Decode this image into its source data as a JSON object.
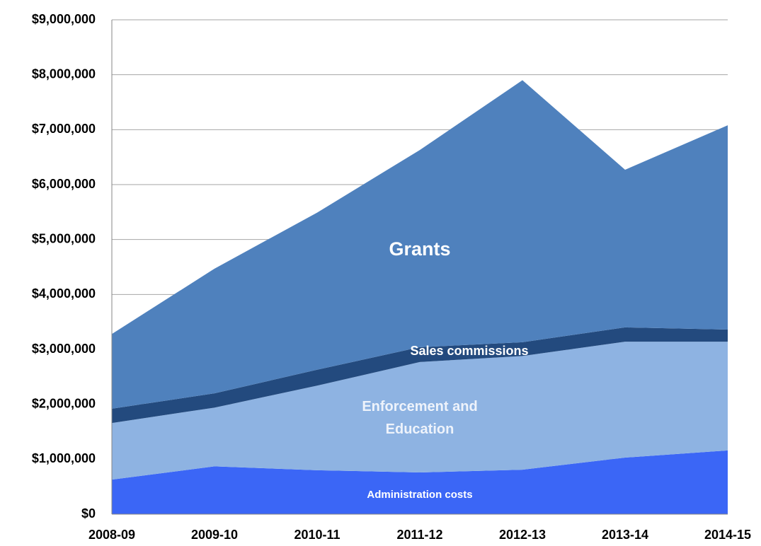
{
  "chart_data": {
    "type": "stacked-area",
    "categories": [
      "2008-09",
      "2009-10",
      "2010-11",
      "2011-12",
      "2012-13",
      "2013-14",
      "2014-15"
    ],
    "series": [
      {
        "name": "Administration costs",
        "color": "#3b66f6",
        "values": [
          630000,
          870000,
          800000,
          760000,
          810000,
          1030000,
          1160000
        ]
      },
      {
        "name": "Enforcement and Education",
        "color": "#8eb3e2",
        "values": [
          1030000,
          1070000,
          1540000,
          2010000,
          2070000,
          2110000,
          1980000
        ]
      },
      {
        "name": "Sales commissions",
        "color": "#234a7e",
        "values": [
          260000,
          260000,
          290000,
          270000,
          250000,
          260000,
          220000
        ]
      },
      {
        "name": "Grants",
        "color": "#4f81bd",
        "values": [
          1360000,
          2270000,
          2860000,
          3590000,
          4770000,
          2870000,
          3720000
        ]
      }
    ],
    "ylim": [
      0,
      9000000
    ],
    "yticks": [
      {
        "value": 0,
        "label": "$0"
      },
      {
        "value": 1000000,
        "label": "$1,000,000"
      },
      {
        "value": 2000000,
        "label": "$2,000,000"
      },
      {
        "value": 3000000,
        "label": "$3,000,000"
      },
      {
        "value": 4000000,
        "label": "$4,000,000"
      },
      {
        "value": 5000000,
        "label": "$5,000,000"
      },
      {
        "value": 6000000,
        "label": "$6,000,000"
      },
      {
        "value": 7000000,
        "label": "$7,000,000"
      },
      {
        "value": 8000000,
        "label": "$8,000,000"
      },
      {
        "value": 9000000,
        "label": "$9,000,000"
      }
    ],
    "grid": true
  }
}
